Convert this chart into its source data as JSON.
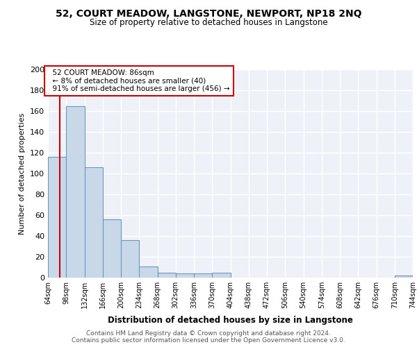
{
  "title": "52, COURT MEADOW, LANGSTONE, NEWPORT, NP18 2NQ",
  "subtitle": "Size of property relative to detached houses in Langstone",
  "xlabel": "Distribution of detached houses by size in Langstone",
  "ylabel": "Number of detached properties",
  "bin_edges": [
    64,
    98,
    132,
    166,
    200,
    234,
    268,
    302,
    336,
    370,
    404,
    438,
    472,
    506,
    540,
    574,
    608,
    642,
    676,
    710,
    744
  ],
  "bin_labels": [
    "64sqm",
    "98sqm",
    "132sqm",
    "166sqm",
    "200sqm",
    "234sqm",
    "268sqm",
    "302sqm",
    "336sqm",
    "370sqm",
    "404sqm",
    "438sqm",
    "472sqm",
    "506sqm",
    "540sqm",
    "574sqm",
    "608sqm",
    "642sqm",
    "676sqm",
    "710sqm",
    "744sqm"
  ],
  "counts": [
    116,
    165,
    106,
    56,
    36,
    11,
    5,
    4,
    4,
    5,
    0,
    0,
    0,
    0,
    0,
    0,
    0,
    0,
    0,
    2
  ],
  "bar_color": "#c8d8e8",
  "bar_edge_color": "#6699bb",
  "background_color": "#eef2f8",
  "grid_color": "#ffffff",
  "property_size": 86,
  "property_label": "52 COURT MEADOW: 86sqm",
  "pct_smaller": "8%",
  "n_smaller": 40,
  "pct_larger": "91%",
  "n_larger": 456,
  "vline_color": "#cc0000",
  "annotation_box_color": "#cc0000",
  "footer_text": "Contains HM Land Registry data © Crown copyright and database right 2024.\nContains public sector information licensed under the Open Government Licence v3.0.",
  "ylim": [
    0,
    200
  ],
  "yticks": [
    0,
    20,
    40,
    60,
    80,
    100,
    120,
    140,
    160,
    180,
    200
  ]
}
